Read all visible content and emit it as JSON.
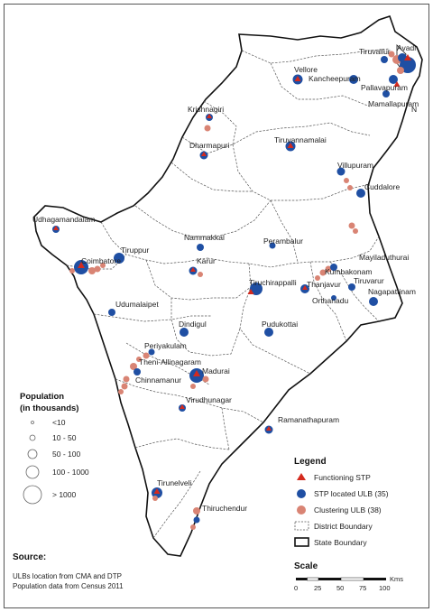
{
  "colors": {
    "stp_blue": "#1f4fa3",
    "cluster_salmon": "#d98474",
    "functioning_red": "#d42a1e",
    "boundary": "#444444"
  },
  "places": [
    {
      "name": "Tiruvallur"
    },
    {
      "name": "Avadi"
    },
    {
      "name": "Vellore"
    },
    {
      "name": "Kancheepuram"
    },
    {
      "name": "Pallavapuram"
    },
    {
      "name": "Mamallapuram"
    },
    {
      "name": "Krishnagiri"
    },
    {
      "name": "Dharmapuri"
    },
    {
      "name": "Tiruvannamalai"
    },
    {
      "name": "Villupuram"
    },
    {
      "name": "Cuddalore"
    },
    {
      "name": "Udhagamandalam"
    },
    {
      "name": "Nammakkal"
    },
    {
      "name": "Perambalur"
    },
    {
      "name": "Mayiladuthurai"
    },
    {
      "name": "Tiruppur"
    },
    {
      "name": "Coimbatore"
    },
    {
      "name": "Karur"
    },
    {
      "name": "Kumbakonam"
    },
    {
      "name": "Tiruchirappalli"
    },
    {
      "name": "Thanjavur"
    },
    {
      "name": "Tiruvarur"
    },
    {
      "name": "Orthanadu"
    },
    {
      "name": "Nagapattinam"
    },
    {
      "name": "Udumalaipet"
    },
    {
      "name": "Dindigul"
    },
    {
      "name": "Pudukottai"
    },
    {
      "name": "Periyakulam"
    },
    {
      "name": "Theni-Allinagaram"
    },
    {
      "name": "Chinnamanur"
    },
    {
      "name": "Madurai"
    },
    {
      "name": "Virudhunagar"
    },
    {
      "name": "Ramanathapuram"
    },
    {
      "name": "Tirunelveli"
    },
    {
      "name": "Thiruchendur"
    }
  ],
  "legend": {
    "title": "Legend",
    "items": [
      {
        "label": "Functioning STP"
      },
      {
        "label": "STP located ULB (35)"
      },
      {
        "label": "Clustering ULB (38)"
      },
      {
        "label": "District Boundary"
      },
      {
        "label": "State Boundary"
      }
    ]
  },
  "population": {
    "title_line1": "Population",
    "title_line2": "(in thousands)",
    "classes": [
      "<10",
      "10 - 50",
      "50 - 100",
      "100 - 1000",
      "> 1000"
    ]
  },
  "source": {
    "title": "Source:",
    "lines": [
      "ULBs location from CMA and DTP",
      "Population data from Census 2011"
    ]
  },
  "scale": {
    "title": "Scale",
    "unit": "Kms",
    "ticks": [
      "0",
      "25",
      "50",
      "75",
      "100"
    ]
  },
  "north_label": "N"
}
